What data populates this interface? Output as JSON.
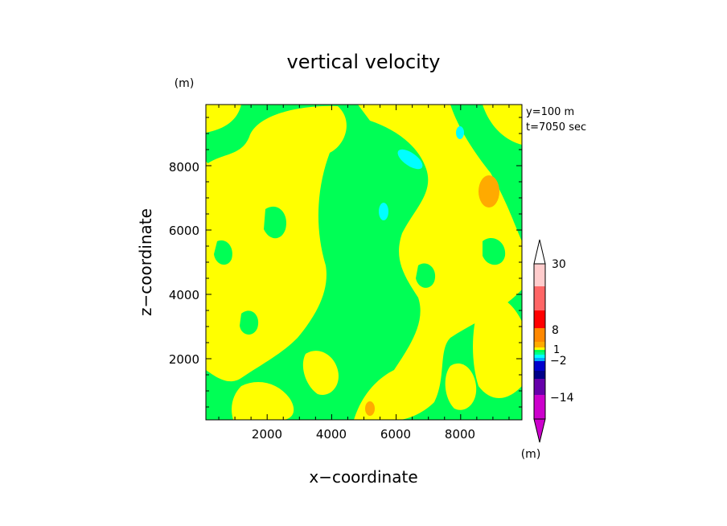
{
  "chart_data": {
    "type": "heatmap",
    "title": "vertical velocity",
    "xlabel": "x−coordinate",
    "ylabel": "z−coordinate",
    "y_unit": "(m)",
    "colorbar_unit": "(m)",
    "info_lines": [
      "y=100  m",
      "t=7050 sec"
    ],
    "x_ticks": [
      "2000",
      "4000",
      "6000",
      "8000"
    ],
    "y_ticks": [
      "2000",
      "4000",
      "6000",
      "8000"
    ],
    "xlim": [
      100,
      9900
    ],
    "ylim": [
      100,
      9900
    ],
    "colorbar_labels": [
      "30",
      "8",
      "1",
      "−2",
      "−14"
    ],
    "colors": {
      "green": "#00ff55",
      "yellow": "#ffff00",
      "orange": "#ffaa00",
      "cyan": "#00ffff",
      "positive_bands": [
        "#ffaa00",
        "#ff8800",
        "#ff0000",
        "#ff6666",
        "#ffaaaa"
      ],
      "negative_bands": [
        "#0000cc",
        "#000088",
        "#6600aa",
        "#cc00cc"
      ]
    }
  }
}
